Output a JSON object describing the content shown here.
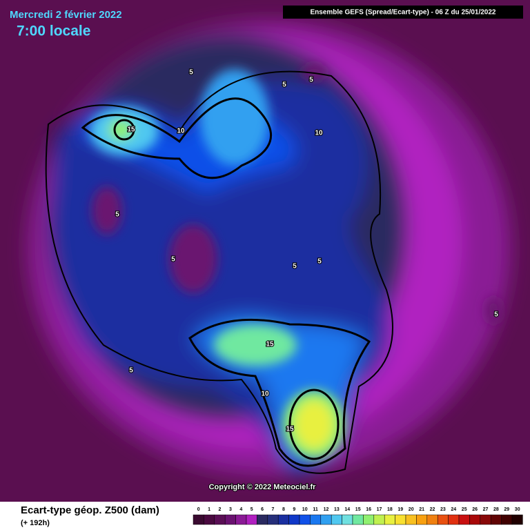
{
  "header": {
    "title": "Mercredi 2 février 2022",
    "time": "7:00 locale",
    "model": "Ensemble GEFS  (Spread/Ecart-type) - 06 Z du 25/01/2022"
  },
  "map": {
    "contour_labels": [
      15,
      10,
      5,
      5,
      5,
      10,
      5,
      5,
      5,
      5,
      5,
      15,
      5,
      10,
      15
    ],
    "copyright": "Copyright © 2022 Meteociel.fr"
  },
  "legend": {
    "title": "Ecart-type géop. Z500 (dam)",
    "subtitle": "(+ 192h)",
    "ticks": [
      0,
      1,
      2,
      3,
      4,
      5,
      6,
      7,
      8,
      9,
      10,
      11,
      12,
      13,
      14,
      15,
      16,
      17,
      18,
      19,
      20,
      21,
      22,
      23,
      24,
      25,
      26,
      27,
      28,
      29,
      30
    ],
    "colors": [
      "#3a0a30",
      "#4a0a40",
      "#5a0f55",
      "#6a1270",
      "#8a1a95",
      "#b020c0",
      "#2a2a60",
      "#262f7a",
      "#1a2fa0",
      "#1038c8",
      "#1050e8",
      "#1a78f0",
      "#30a0f0",
      "#50c8f0",
      "#70e0e0",
      "#70e8a0",
      "#90f070",
      "#c0f050",
      "#e8f040",
      "#f8e030",
      "#f8c020",
      "#f8a010",
      "#f08010",
      "#e85010",
      "#e03010",
      "#c81010",
      "#a80808",
      "#880808",
      "#600404",
      "#400000",
      "#200000"
    ]
  }
}
